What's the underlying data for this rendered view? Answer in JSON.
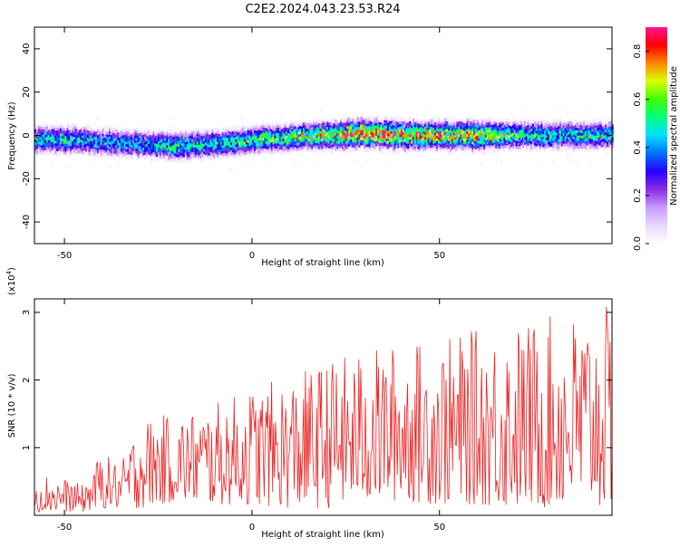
{
  "title": "C2E2.2024.043.23.53.R24",
  "colors": {
    "snr_line": "#ee2222",
    "axis": "#000000",
    "colormap": [
      "#ffffff",
      "#e9d8ff",
      "#c99bff",
      "#8a2be2",
      "#2a00ff",
      "#0070ff",
      "#00e0ff",
      "#00ff80",
      "#40ff00",
      "#d8ff00",
      "#ff8800",
      "#ff0000",
      "#ff1493"
    ]
  },
  "chart_data": [
    {
      "type": "heatmap",
      "title": "",
      "xlabel": "Height of straight line (km)",
      "ylabel": "Frequency (Hz)",
      "xlim": [
        -58,
        96
      ],
      "ylim": [
        -50,
        50
      ],
      "xticks": [
        -50,
        0,
        50
      ],
      "yticks": [
        -40,
        -20,
        0,
        20,
        40
      ],
      "ridge": {
        "x": [
          -58,
          -50,
          -40,
          -30,
          -20,
          -10,
          0,
          10,
          20,
          30,
          40,
          50,
          60,
          70,
          80,
          96
        ],
        "center_hz": [
          -2,
          -2,
          -3,
          -4,
          -5,
          -4,
          -2,
          -1,
          0,
          1,
          0,
          0,
          0,
          0,
          0,
          0
        ],
        "peak_amplitude": [
          0.5,
          0.5,
          0.45,
          0.45,
          0.55,
          0.5,
          0.55,
          0.6,
          0.7,
          0.9,
          0.85,
          0.75,
          0.8,
          0.55,
          0.5,
          0.5
        ]
      },
      "colorbar": {
        "label": "Normalized spectral amplitude",
        "range": [
          0.0,
          0.9
        ],
        "ticks": [
          "0.0",
          "0.2",
          "0.4",
          "0.6",
          "0.8"
        ]
      }
    },
    {
      "type": "line",
      "title": "",
      "xlabel": "Height of straight line (km)",
      "ylabel": "SNR (10 * v/v)",
      "y_multiplier_base": "(x10",
      "y_multiplier_exp": "4",
      "y_multiplier_close": ")",
      "xlim": [
        -58,
        96
      ],
      "ylim": [
        0,
        3.2
      ],
      "xticks": [
        -50,
        0,
        50
      ],
      "yticks": [
        1,
        2,
        3
      ],
      "series": [
        {
          "name": "",
          "envelope_x": [
            -58,
            -50,
            -45,
            -40,
            -35,
            -30,
            -20,
            -10,
            0,
            10,
            20,
            30,
            40,
            50,
            60,
            70,
            80,
            96
          ],
          "envelope_max": [
            0.65,
            0.55,
            0.45,
            0.95,
            0.75,
            1.45,
            1.5,
            1.65,
            1.9,
            2.05,
            2.3,
            2.45,
            2.55,
            2.6,
            2.75,
            2.85,
            2.95,
            3.1
          ],
          "envelope_min": [
            0.05,
            0.05,
            0.05,
            0.1,
            0.1,
            0.1,
            0.2,
            0.15,
            0.15,
            0.1,
            0.1,
            0.2,
            0.2,
            0.15,
            0.15,
            0.1,
            0.1,
            0.1
          ]
        }
      ]
    }
  ]
}
